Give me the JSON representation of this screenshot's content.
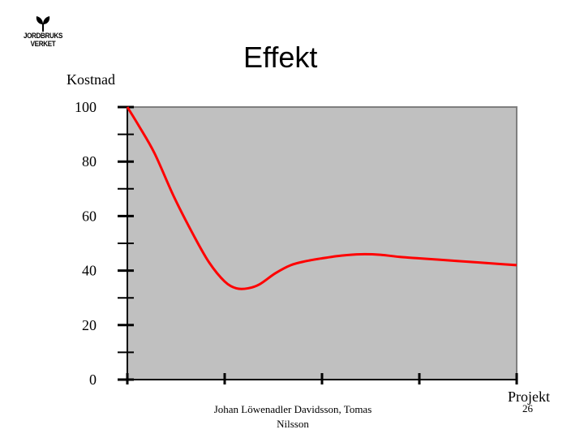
{
  "logo": {
    "line1": "JORDBRUKS",
    "line2": "VERKET"
  },
  "slide_title": "Effekt",
  "footer": {
    "author": "Johan Löwenadler Davidsson, Tomas Nilsson",
    "page": "26"
  },
  "colors": {
    "plot_bg": "#c0c0c0",
    "curve": "#ff0000",
    "axis": "#000000",
    "leaf": "#000000"
  },
  "chart_data": {
    "type": "line",
    "title": "Effekt",
    "xlabel": "Projekt",
    "ylabel": "Kostnad",
    "ylim": [
      0,
      100
    ],
    "xlim": [
      0,
      100
    ],
    "y_ticks": [
      0,
      20,
      40,
      60,
      80,
      100
    ],
    "y_minor_ticks": [
      10,
      30,
      50,
      70,
      90
    ],
    "x_ticks": [
      0,
      25,
      50,
      75,
      100
    ],
    "grid": false,
    "series": [
      {
        "name": "Kostnad",
        "x": [
          0,
          3,
          7,
          12,
          17,
          21,
          25,
          28,
          31,
          34,
          38,
          42,
          46,
          50,
          55,
          60,
          65,
          70,
          75,
          80,
          85,
          90,
          95,
          100
        ],
        "y": [
          100,
          93,
          83,
          67,
          53,
          43,
          36,
          33.5,
          33.5,
          35,
          39,
          42,
          43.5,
          44.5,
          45.5,
          46,
          45.8,
          45,
          44.5,
          44,
          43.5,
          43,
          42.5,
          42
        ]
      }
    ]
  }
}
